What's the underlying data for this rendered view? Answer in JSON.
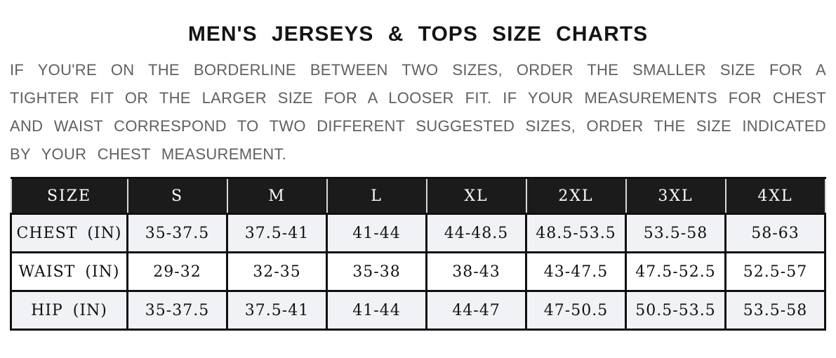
{
  "page": {
    "title": "MEN'S JERSEYS & TOPS SIZE CHARTS"
  },
  "intro": {
    "lines": [
      "IF YOU'RE ON THE BORDERLINE BETWEEN TWO SIZES, ORDER THE SMALLER SIZE FOR A",
      "TIGHTER FIT OR THE LARGER SIZE FOR A LOOSER FIT. IF YOUR MEASUREMENTS FOR CHEST",
      "AND WAIST CORRESPOND TO TWO DIFFERENT SUGGESTED SIZES, ORDER THE SIZE INDICATED",
      "BY YOUR CHEST MEASUREMENT."
    ]
  },
  "size_chart": {
    "columns": [
      "SIZE",
      "S",
      "M",
      "L",
      "XL",
      "2XL",
      "3XL",
      "4XL"
    ],
    "rows": [
      {
        "label": "CHEST (IN)",
        "values": [
          "35-37.5",
          "37.5-41",
          "41-44",
          "44-48.5",
          "48.5-53.5",
          "53.5-58",
          "58-63"
        ]
      },
      {
        "label": "WAIST (IN)",
        "values": [
          "29-32",
          "32-35",
          "35-38",
          "38-43",
          "43-47.5",
          "47.5-52.5",
          "52.5-57"
        ]
      },
      {
        "label": "HIP (IN)",
        "values": [
          "35-37.5",
          "37.5-41",
          "41-44",
          "44-47",
          "47-50.5",
          "50.5-53.5",
          "53.5-58"
        ]
      }
    ]
  },
  "colors": {
    "header_bg": "#1b1b1b",
    "header_text": "#ffffff",
    "stripe_row_bg": "#f1f2f6",
    "plain_row_bg": "#ffffff",
    "table_border": "#101010",
    "title_text": "#141414",
    "paragraph_text": "#606060"
  }
}
